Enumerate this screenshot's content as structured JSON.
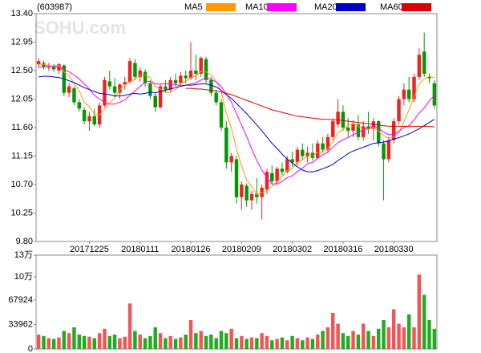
{
  "chart_data": {
    "type": "candlestick",
    "title": "(603987)",
    "watermark": "SOHU.com",
    "categories": [
      null,
      null,
      null,
      null,
      null,
      null,
      null,
      null,
      null,
      null,
      "20171225",
      null,
      null,
      null,
      null,
      null,
      null,
      null,
      null,
      null,
      "20180111",
      null,
      null,
      null,
      null,
      null,
      null,
      null,
      null,
      null,
      "20180126",
      null,
      null,
      null,
      null,
      null,
      null,
      null,
      null,
      null,
      "20180209",
      null,
      null,
      null,
      null,
      null,
      null,
      null,
      null,
      null,
      "20180302",
      null,
      null,
      null,
      null,
      null,
      null,
      null,
      null,
      null,
      "20180316",
      null,
      null,
      null,
      null,
      null,
      null,
      null,
      null,
      null,
      "20180330",
      null,
      null,
      null,
      null,
      null,
      null,
      null,
      null
    ],
    "open": [
      12.6,
      12.62,
      12.55,
      12.58,
      12.5,
      12.58,
      12.15,
      12.22,
      12.0,
      11.88,
      11.7,
      11.78,
      11.65,
      11.95,
      12.33,
      12.25,
      12.15,
      12.28,
      12.32,
      12.62,
      12.4,
      12.48,
      12.3,
      12.1,
      11.92,
      12.25,
      12.2,
      12.35,
      12.3,
      12.42,
      12.38,
      12.5,
      12.45,
      12.68,
      12.35,
      12.15,
      12.0,
      11.6,
      11.05,
      11.1,
      10.5,
      10.68,
      10.45,
      10.55,
      10.5,
      10.62,
      10.88,
      10.75,
      10.95,
      10.9,
      11.1,
      11.05,
      11.25,
      11.15,
      11.2,
      11.12,
      11.35,
      11.25,
      11.45,
      11.65,
      11.85,
      11.6,
      11.55,
      11.65,
      11.45,
      11.62,
      11.58,
      11.7,
      11.35,
      11.1,
      11.4,
      11.7,
      12.05,
      12.2,
      12.05,
      12.4,
      12.8,
      12.4,
      12.3
    ],
    "high": [
      12.7,
      12.66,
      12.62,
      12.6,
      12.62,
      12.6,
      12.3,
      12.25,
      12.05,
      11.92,
      11.85,
      11.9,
      12.0,
      12.4,
      12.5,
      12.38,
      12.3,
      12.4,
      12.7,
      12.68,
      12.55,
      12.52,
      12.35,
      12.15,
      12.3,
      12.35,
      12.4,
      12.45,
      12.48,
      12.5,
      12.95,
      12.75,
      12.72,
      12.72,
      12.4,
      12.2,
      12.05,
      11.7,
      11.2,
      11.15,
      10.75,
      10.72,
      10.6,
      10.8,
      10.7,
      10.95,
      11.0,
      10.98,
      11.05,
      11.15,
      11.22,
      11.3,
      11.35,
      11.3,
      11.35,
      11.4,
      11.45,
      11.5,
      11.75,
      12.05,
      11.95,
      11.75,
      11.72,
      11.8,
      11.7,
      11.85,
      11.75,
      11.72,
      11.4,
      11.45,
      11.75,
      12.1,
      12.3,
      12.4,
      12.45,
      12.85,
      13.1,
      12.45,
      12.35
    ],
    "low": [
      12.55,
      12.52,
      12.5,
      12.48,
      12.45,
      12.1,
      12.08,
      11.95,
      11.85,
      11.65,
      11.55,
      11.62,
      11.6,
      11.92,
      12.2,
      12.08,
      12.05,
      12.2,
      12.3,
      12.35,
      12.32,
      12.25,
      12.05,
      11.85,
      11.9,
      12.15,
      12.15,
      12.25,
      12.25,
      12.3,
      12.35,
      12.35,
      12.4,
      12.3,
      12.1,
      11.95,
      11.55,
      10.95,
      10.9,
      10.4,
      10.3,
      10.35,
      10.3,
      10.4,
      10.15,
      10.55,
      10.7,
      10.7,
      10.85,
      10.88,
      10.98,
      11.0,
      11.1,
      11.05,
      11.08,
      11.1,
      11.2,
      11.2,
      11.4,
      11.6,
      11.55,
      11.45,
      11.45,
      11.4,
      11.4,
      11.5,
      11.4,
      11.3,
      10.45,
      11.05,
      11.35,
      11.65,
      11.95,
      12.0,
      12.0,
      12.35,
      12.4,
      12.3,
      11.9
    ],
    "close": [
      12.65,
      12.55,
      12.58,
      12.52,
      12.6,
      12.15,
      12.25,
      12.0,
      11.9,
      11.7,
      11.78,
      11.65,
      11.95,
      12.35,
      12.25,
      12.15,
      12.28,
      12.32,
      12.65,
      12.4,
      12.5,
      12.3,
      12.1,
      11.92,
      12.25,
      12.2,
      12.35,
      12.3,
      12.42,
      12.38,
      12.5,
      12.45,
      12.7,
      12.35,
      12.15,
      12.0,
      11.6,
      11.05,
      11.15,
      10.5,
      10.7,
      10.45,
      10.55,
      10.5,
      10.65,
      10.9,
      10.75,
      10.95,
      10.9,
      11.1,
      11.05,
      11.25,
      11.15,
      11.2,
      11.12,
      11.35,
      11.25,
      11.45,
      11.7,
      11.85,
      11.6,
      11.55,
      11.65,
      11.45,
      11.62,
      11.58,
      11.7,
      11.35,
      11.1,
      11.4,
      11.7,
      12.05,
      12.2,
      12.05,
      12.4,
      12.75,
      12.45,
      12.38,
      11.95
    ],
    "volume": [
      20000,
      18000,
      15000,
      14000,
      16000,
      25000,
      22000,
      30000,
      20000,
      18000,
      17000,
      15000,
      22000,
      28000,
      18000,
      20000,
      15000,
      17000,
      63000,
      25000,
      20000,
      15000,
      18000,
      30000,
      22000,
      15000,
      18000,
      14000,
      16000,
      20000,
      40000,
      22000,
      25000,
      18000,
      20000,
      15000,
      25000,
      22000,
      28000,
      15000,
      18000,
      14000,
      16000,
      15000,
      22000,
      18000,
      12000,
      14000,
      16000,
      12000,
      18000,
      15000,
      12000,
      16000,
      14000,
      20000,
      25000,
      30000,
      50000,
      35000,
      22000,
      18000,
      25000,
      20000,
      35000,
      25000,
      18000,
      28000,
      40000,
      30000,
      55000,
      35000,
      30000,
      48000,
      30000,
      103000,
      75000,
      40000,
      28000
    ],
    "up_color": "#ee2222",
    "down_color": "#009900",
    "series": [
      {
        "name": "MA5",
        "color": "#ff9900",
        "values": [
          12.6,
          12.6,
          12.58,
          12.57,
          12.58,
          12.48,
          12.42,
          12.3,
          12.18,
          12.0,
          11.93,
          11.81,
          11.8,
          11.89,
          11.99,
          12.07,
          12.2,
          12.27,
          12.33,
          12.36,
          12.43,
          12.43,
          12.39,
          12.24,
          12.21,
          12.15,
          12.16,
          12.2,
          12.3,
          12.33,
          12.39,
          12.41,
          12.49,
          12.48,
          12.43,
          12.33,
          12.16,
          11.83,
          11.59,
          11.26,
          11.0,
          10.77,
          10.67,
          10.54,
          10.57,
          10.61,
          10.67,
          10.75,
          10.83,
          10.92,
          10.95,
          11.05,
          11.09,
          11.15,
          11.15,
          11.21,
          11.21,
          11.27,
          11.37,
          11.52,
          11.57,
          11.63,
          11.67,
          11.62,
          11.57,
          11.57,
          11.6,
          11.54,
          11.47,
          11.43,
          11.45,
          11.52,
          11.69,
          11.88,
          12.08,
          12.29,
          12.37,
          12.41,
          12.39
        ]
      },
      {
        "name": "MA10",
        "color": "#ff00ff",
        "values": [
          12.55,
          12.56,
          12.56,
          12.56,
          12.56,
          12.52,
          12.48,
          12.43,
          12.37,
          12.29,
          12.21,
          12.11,
          12.05,
          12.0,
          11.97,
          11.97,
          12.0,
          12.04,
          12.11,
          12.18,
          12.25,
          12.32,
          12.33,
          12.29,
          12.29,
          12.29,
          12.29,
          12.28,
          12.26,
          12.27,
          12.29,
          12.31,
          12.35,
          12.39,
          12.36,
          12.32,
          12.25,
          12.13,
          12.0,
          11.82,
          11.64,
          11.46,
          11.26,
          11.08,
          10.93,
          10.81,
          10.71,
          10.71,
          10.75,
          10.81,
          10.84,
          10.9,
          10.96,
          11.03,
          11.05,
          11.12,
          11.17,
          11.21,
          11.29,
          11.36,
          11.41,
          11.44,
          11.49,
          11.52,
          11.57,
          11.6,
          11.62,
          11.59,
          11.53,
          11.49,
          11.49,
          11.54,
          11.6,
          11.63,
          11.72,
          11.83,
          11.91,
          12.02,
          12.11
        ]
      },
      {
        "name": "MA20",
        "color": "#0000cc",
        "values": [
          12.4,
          12.41,
          12.41,
          12.4,
          12.39,
          12.37,
          12.34,
          12.31,
          12.27,
          12.23,
          12.2,
          12.17,
          12.14,
          12.13,
          12.12,
          12.1,
          12.1,
          12.11,
          12.13,
          12.14,
          12.13,
          12.14,
          12.16,
          12.15,
          12.17,
          12.19,
          12.21,
          12.23,
          12.25,
          12.27,
          12.27,
          12.28,
          12.29,
          12.29,
          12.27,
          12.24,
          12.19,
          12.12,
          12.06,
          11.98,
          11.9,
          11.82,
          11.73,
          11.64,
          11.55,
          11.45,
          11.35,
          11.27,
          11.18,
          11.1,
          11.04,
          10.98,
          10.93,
          10.9,
          10.9,
          10.92,
          10.95,
          10.98,
          11.02,
          11.08,
          11.13,
          11.19,
          11.23,
          11.26,
          11.29,
          11.32,
          11.35,
          11.36,
          11.37,
          11.39,
          11.42,
          11.44,
          11.47,
          11.5,
          11.54,
          11.58,
          11.63,
          11.68,
          11.73
        ]
      },
      {
        "name": "MA60",
        "color": "#dd0000",
        "values": [
          null,
          null,
          null,
          null,
          null,
          null,
          null,
          null,
          null,
          null,
          null,
          null,
          null,
          null,
          null,
          null,
          null,
          null,
          null,
          null,
          null,
          null,
          null,
          null,
          null,
          null,
          null,
          null,
          null,
          12.22,
          12.22,
          12.21,
          12.21,
          12.2,
          12.19,
          12.18,
          12.16,
          12.14,
          12.12,
          12.09,
          12.06,
          12.03,
          12.0,
          11.97,
          11.94,
          11.91,
          11.88,
          11.86,
          11.84,
          11.82,
          11.8,
          11.78,
          11.77,
          11.76,
          11.75,
          11.74,
          11.73,
          11.73,
          11.72,
          11.72,
          11.71,
          11.7,
          11.69,
          11.68,
          11.67,
          11.66,
          11.65,
          11.64,
          11.63,
          11.62,
          11.62,
          11.62,
          11.62,
          11.62,
          11.62,
          11.62,
          11.62,
          11.62,
          11.61
        ]
      }
    ],
    "ylim": [
      9.8,
      13.4
    ],
    "yticks": [
      {
        "value": 9.8,
        "label": "9.80"
      },
      10.25,
      {
        "value": 10.7,
        "label": "10.70"
      },
      11.15,
      {
        "value": 11.6,
        "label": "11.60"
      },
      12.05,
      {
        "value": 12.5,
        "label": "12.50"
      },
      12.95,
      {
        "value": 13.4,
        "label": "13.40"
      }
    ],
    "vlim": [
      0,
      130000
    ],
    "vticks": [
      0,
      33962,
      67924,
      {
        "value": 100000,
        "label": "10万"
      },
      {
        "value": 130000,
        "label": "13万"
      }
    ]
  }
}
